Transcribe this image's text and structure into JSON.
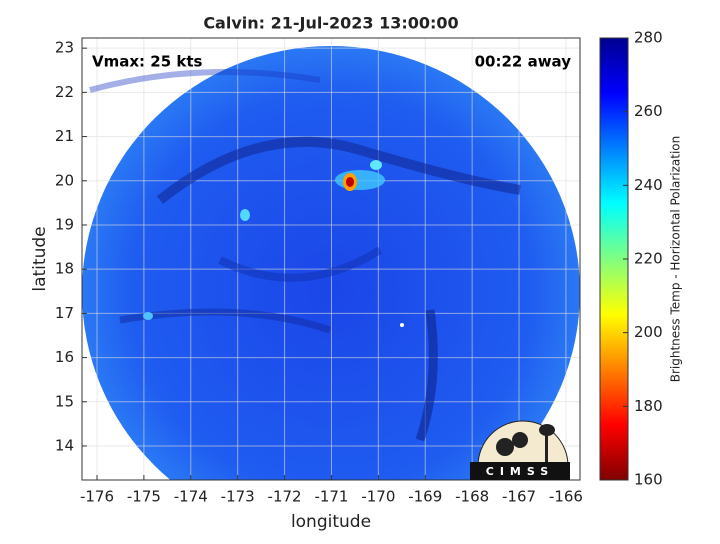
{
  "chart_data": {
    "type": "image",
    "title": "Calvin: 21-Jul-2023 13:00:00",
    "annotations": [
      "Vmax: 25 kts",
      "00:22 away"
    ],
    "x_label": "longitude",
    "y_label": "latitude",
    "xlim": [
      -176.32,
      -165.7
    ],
    "ylim": [
      13.23,
      23.23
    ],
    "xticks": [
      -176,
      -175,
      -174,
      -173,
      -172,
      -171,
      -170,
      -169,
      -168,
      -167,
      -166
    ],
    "yticks": [
      14,
      15,
      16,
      17,
      18,
      19,
      20,
      21,
      22,
      23
    ],
    "grid": true,
    "colorbar": {
      "label": "Brightness Temp - Horizontal Polarization",
      "lim": [
        160,
        280
      ],
      "ticks": [
        160,
        180,
        200,
        220,
        240,
        260,
        280
      ],
      "colormap": [
        "#800000",
        "#ff0000",
        "#ff8000",
        "#ffff00",
        "#80ff80",
        "#00ffff",
        "#0080ff",
        "#0000ff",
        "#00008f"
      ]
    },
    "logo": "CIMSS"
  }
}
